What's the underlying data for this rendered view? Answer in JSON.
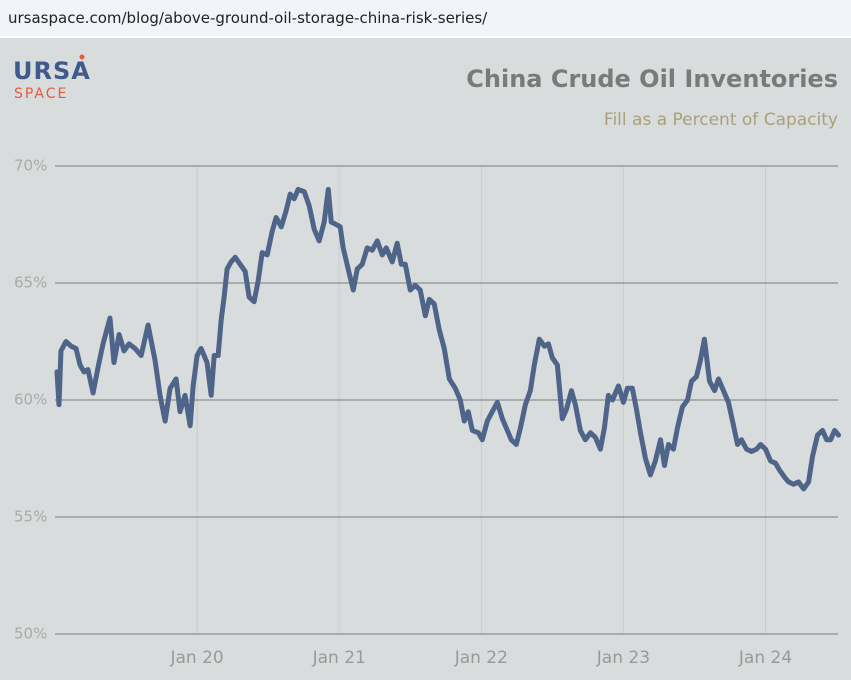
{
  "url": "ursaspace.com/blog/above-ground-oil-storage-china-risk-series/",
  "logo": {
    "line1": "URSA",
    "line2": "SPACE"
  },
  "chart_data": {
    "type": "line",
    "title": "China Crude Oil Inventories",
    "subtitle": "Fill as a Percent of Capacity",
    "xlim": [
      2019.0,
      2024.51
    ],
    "xticks": [
      {
        "value": 2020,
        "label": "Jan 20"
      },
      {
        "value": 2021,
        "label": "Jan 21"
      },
      {
        "value": 2022,
        "label": "Jan 22"
      },
      {
        "value": 2023,
        "label": "Jan 23"
      },
      {
        "value": 2024,
        "label": "Jan 24"
      }
    ],
    "ylim": [
      50,
      70
    ],
    "yticks": [
      {
        "value": 50,
        "label": "50%"
      },
      {
        "value": 55,
        "label": "55%"
      },
      {
        "value": 60,
        "label": "60%"
      },
      {
        "value": 65,
        "label": "65%"
      },
      {
        "value": 70,
        "label": "70%"
      }
    ],
    "grid": true,
    "series": [
      {
        "color": "#4f6489",
        "x": [
          2019.014,
          2019.028,
          2019.042,
          2019.077,
          2019.113,
          2019.148,
          2019.176,
          2019.204,
          2019.232,
          2019.268,
          2019.303,
          2019.338,
          2019.387,
          2019.415,
          2019.451,
          2019.486,
          2019.521,
          2019.563,
          2019.606,
          2019.655,
          2019.704,
          2019.739,
          2019.775,
          2019.81,
          2019.852,
          2019.88,
          2019.915,
          2019.951,
          2019.972,
          2020.0,
          2020.028,
          2020.07,
          2020.099,
          2020.12,
          2020.148,
          2020.169,
          2020.19,
          2020.211,
          2020.239,
          2020.268,
          2020.303,
          2020.338,
          2020.366,
          2020.401,
          2020.43,
          2020.458,
          2020.493,
          2020.528,
          2020.556,
          2020.592,
          2020.627,
          2020.655,
          2020.683,
          2020.711,
          2020.754,
          2020.789,
          2020.824,
          2020.859,
          2020.894,
          2020.923,
          2020.944,
          2020.979,
          2021.007,
          2021.028,
          2021.063,
          2021.099,
          2021.127,
          2021.162,
          2021.197,
          2021.232,
          2021.268,
          2021.303,
          2021.331,
          2021.373,
          2021.408,
          2021.437,
          2021.465,
          2021.5,
          2021.535,
          2021.57,
          2021.606,
          2021.634,
          2021.669,
          2021.704,
          2021.739,
          2021.775,
          2021.817,
          2021.852,
          2021.88,
          2021.908,
          2021.937,
          2021.979,
          2022.007,
          2022.042,
          2022.077,
          2022.113,
          2022.148,
          2022.176,
          2022.211,
          2022.246,
          2022.275,
          2022.31,
          2022.345,
          2022.373,
          2022.408,
          2022.444,
          2022.472,
          2022.5,
          2022.535,
          2022.57,
          2022.599,
          2022.634,
          2022.662,
          2022.697,
          2022.732,
          2022.768,
          2022.803,
          2022.838,
          2022.866,
          2022.894,
          2022.923,
          2022.965,
          2023.0,
          2023.028,
          2023.063,
          2023.092,
          2023.12,
          2023.155,
          2023.19,
          2023.225,
          2023.261,
          2023.289,
          2023.317,
          2023.352,
          2023.38,
          2023.415,
          2023.451,
          2023.479,
          2023.514,
          2023.542,
          2023.57,
          2023.606,
          2023.641,
          2023.669,
          2023.704,
          2023.739,
          2023.775,
          2023.803,
          2023.831,
          2023.866,
          2023.901,
          2023.937,
          2023.965,
          2024.0,
          2024.035,
          2024.07,
          2024.099,
          2024.134,
          2024.162,
          2024.197,
          2024.232,
          2024.268,
          2024.303,
          2024.331,
          2024.366,
          2024.401,
          2024.43,
          2024.458,
          2024.486,
          2024.514
        ],
        "values": [
          61.2,
          59.8,
          62.1,
          62.5,
          62.3,
          62.2,
          61.5,
          61.2,
          61.3,
          60.3,
          61.4,
          62.4,
          63.5,
          61.6,
          62.8,
          62.1,
          62.4,
          62.2,
          61.9,
          63.2,
          61.7,
          60.2,
          59.1,
          60.5,
          60.9,
          59.5,
          60.2,
          58.9,
          60.6,
          61.9,
          62.2,
          61.6,
          60.2,
          61.9,
          61.9,
          63.4,
          64.4,
          65.6,
          65.9,
          66.1,
          65.8,
          65.5,
          64.4,
          64.2,
          65.1,
          66.3,
          66.2,
          67.2,
          67.8,
          67.4,
          68.1,
          68.8,
          68.6,
          69.0,
          68.9,
          68.3,
          67.3,
          66.8,
          67.6,
          69.0,
          67.6,
          67.5,
          67.4,
          66.5,
          65.6,
          64.7,
          65.6,
          65.8,
          66.5,
          66.4,
          66.8,
          66.2,
          66.5,
          65.9,
          66.7,
          65.8,
          65.8,
          64.7,
          64.9,
          64.7,
          63.6,
          64.3,
          64.1,
          63.0,
          62.2,
          60.9,
          60.5,
          60.0,
          59.1,
          59.5,
          58.7,
          58.6,
          58.3,
          59.1,
          59.5,
          59.9,
          59.2,
          58.8,
          58.3,
          58.1,
          58.8,
          59.8,
          60.4,
          61.5,
          62.6,
          62.3,
          62.4,
          61.8,
          61.5,
          59.2,
          59.6,
          60.4,
          59.8,
          58.7,
          58.3,
          58.6,
          58.4,
          57.9,
          58.8,
          60.2,
          60.0,
          60.6,
          59.9,
          60.5,
          60.5,
          59.6,
          58.6,
          57.5,
          56.8,
          57.4,
          58.3,
          57.2,
          58.1,
          57.9,
          58.8,
          59.7,
          60.0,
          60.8,
          61.0,
          61.7,
          62.6,
          60.8,
          60.4,
          60.9,
          60.4,
          59.9,
          58.9,
          58.1,
          58.3,
          57.9,
          57.8,
          57.9,
          58.1,
          57.9,
          57.4,
          57.3,
          57.0,
          56.7,
          56.5,
          56.4,
          56.5,
          56.2,
          56.5,
          57.6,
          58.5,
          58.7,
          58.3,
          58.3,
          58.7,
          58.5
        ]
      }
    ]
  }
}
